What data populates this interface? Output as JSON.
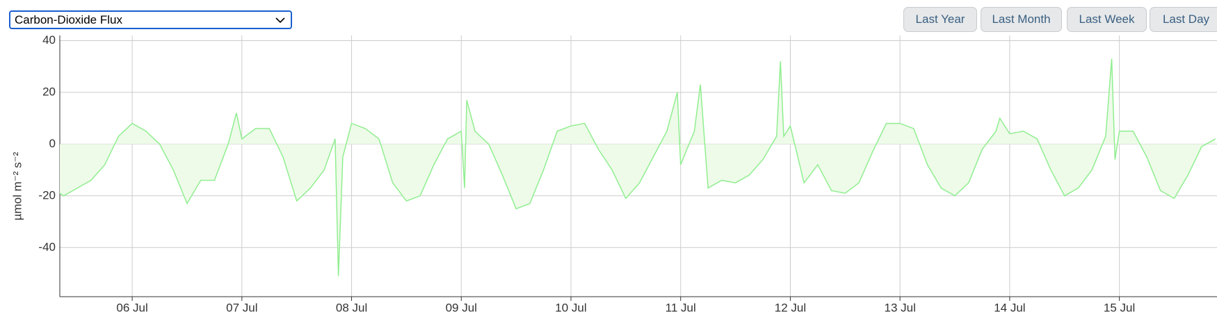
{
  "select": {
    "value": "Carbon-Dioxide Flux"
  },
  "buttons": [
    "Last Year",
    "Last Month",
    "Last Week",
    "Last Day"
  ],
  "chart_data": {
    "type": "area",
    "ylabel": "µmol m⁻² s⁻²",
    "xlim": [
      5.34,
      15.89
    ],
    "ylim": [
      -59,
      42
    ],
    "xticks": [
      {
        "value": 6,
        "label": "06 Jul"
      },
      {
        "value": 7,
        "label": "07 Jul"
      },
      {
        "value": 8,
        "label": "08 Jul"
      },
      {
        "value": 9,
        "label": "09 Jul"
      },
      {
        "value": 10,
        "label": "10 Jul"
      },
      {
        "value": 11,
        "label": "11 Jul"
      },
      {
        "value": 12,
        "label": "12 Jul"
      },
      {
        "value": 13,
        "label": "13 Jul"
      },
      {
        "value": 14,
        "label": "14 Jul"
      },
      {
        "value": 15,
        "label": "15 Jul"
      }
    ],
    "yticks": [
      -40,
      -20,
      0,
      20,
      40
    ],
    "grid": true,
    "color": "#90ee90",
    "fill": "#eefbe9",
    "x": [
      5.34,
      5.375,
      5.5,
      5.625,
      5.75,
      5.875,
      6.0,
      6.125,
      6.25,
      6.375,
      6.5,
      6.625,
      6.75,
      6.875,
      6.95,
      7.0,
      7.125,
      7.25,
      7.375,
      7.5,
      7.625,
      7.75,
      7.85,
      7.88,
      7.92,
      8.0,
      8.125,
      8.25,
      8.375,
      8.5,
      8.625,
      8.75,
      8.875,
      9.0,
      9.03,
      9.05,
      9.125,
      9.25,
      9.375,
      9.5,
      9.625,
      9.75,
      9.875,
      10.0,
      10.125,
      10.25,
      10.375,
      10.5,
      10.625,
      10.75,
      10.875,
      10.97,
      11.0,
      11.125,
      11.18,
      11.25,
      11.375,
      11.5,
      11.625,
      11.75,
      11.875,
      11.91,
      11.94,
      12.0,
      12.125,
      12.25,
      12.375,
      12.5,
      12.625,
      12.75,
      12.875,
      13.0,
      13.125,
      13.25,
      13.375,
      13.5,
      13.625,
      13.75,
      13.875,
      13.91,
      14.0,
      14.125,
      14.25,
      14.375,
      14.5,
      14.625,
      14.75,
      14.875,
      14.93,
      14.96,
      15.0,
      15.125,
      15.25,
      15.375,
      15.5,
      15.625,
      15.75,
      15.875
    ],
    "values": [
      -19,
      -20,
      -17,
      -14,
      -8,
      3,
      8,
      5,
      0,
      -10,
      -23,
      -14,
      -14,
      0,
      12,
      2,
      6,
      6,
      -5,
      -22,
      -17,
      -10,
      2,
      -51,
      -5,
      8,
      6,
      2,
      -15,
      -22,
      -20,
      -8,
      2,
      5,
      -17,
      17,
      5,
      0,
      -12,
      -25,
      -23,
      -10,
      5,
      7,
      8,
      -2,
      -10,
      -21,
      -15,
      -5,
      5,
      20,
      -8,
      5,
      23,
      -17,
      -14,
      -15,
      -12,
      -6,
      3,
      32,
      3,
      7,
      -15,
      -8,
      -18,
      -19,
      -15,
      -3,
      8,
      8,
      6,
      -8,
      -17,
      -20,
      -15,
      -2,
      5,
      10,
      4,
      5,
      2,
      -10,
      -20,
      -17,
      -10,
      3,
      33,
      -6,
      5,
      5,
      -5,
      -18,
      -21,
      -12,
      -1,
      2
    ]
  }
}
